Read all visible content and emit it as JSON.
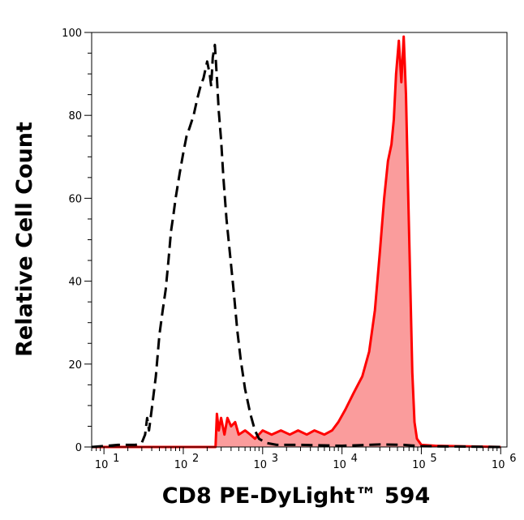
{
  "chart_data": {
    "type": "area",
    "title": "",
    "xlabel": "CD8 PE-DyLight™ 594",
    "ylabel": "Relative Cell Count",
    "x_scale": "log",
    "xlim": [
      7,
      1200000
    ],
    "ylim": [
      0,
      100
    ],
    "x_ticks": [
      {
        "value": 10,
        "base": "10",
        "exp": "1"
      },
      {
        "value": 100,
        "base": "10",
        "exp": "2"
      },
      {
        "value": 1000,
        "base": "10",
        "exp": "3"
      },
      {
        "value": 10000,
        "base": "10",
        "exp": "4"
      },
      {
        "value": 100000,
        "base": "10",
        "exp": "5"
      },
      {
        "value": 1000000,
        "base": "10",
        "exp": "6"
      }
    ],
    "y_ticks": [
      0,
      20,
      40,
      60,
      80,
      100
    ],
    "grid": false,
    "legend": "none",
    "series": [
      {
        "style": "dashed",
        "color": "#000000",
        "fill": "none",
        "points": [
          [
            7,
            0
          ],
          [
            15,
            0.5
          ],
          [
            25,
            0.5
          ],
          [
            30,
            1
          ],
          [
            33,
            3
          ],
          [
            35,
            7
          ],
          [
            37,
            4
          ],
          [
            40,
            9
          ],
          [
            45,
            17
          ],
          [
            50,
            27
          ],
          [
            55,
            33
          ],
          [
            60,
            38
          ],
          [
            65,
            45
          ],
          [
            70,
            52
          ],
          [
            75,
            56
          ],
          [
            80,
            60
          ],
          [
            90,
            66
          ],
          [
            100,
            71
          ],
          [
            110,
            75
          ],
          [
            120,
            77
          ],
          [
            135,
            80
          ],
          [
            150,
            84
          ],
          [
            165,
            87
          ],
          [
            180,
            89
          ],
          [
            200,
            93
          ],
          [
            215,
            90
          ],
          [
            225,
            87
          ],
          [
            235,
            94
          ],
          [
            250,
            97
          ],
          [
            265,
            89
          ],
          [
            280,
            81
          ],
          [
            300,
            74
          ],
          [
            320,
            65
          ],
          [
            350,
            55
          ],
          [
            390,
            46
          ],
          [
            430,
            38
          ],
          [
            480,
            28
          ],
          [
            530,
            21
          ],
          [
            600,
            14
          ],
          [
            700,
            8
          ],
          [
            800,
            4
          ],
          [
            900,
            2
          ],
          [
            1100,
            1
          ],
          [
            1500,
            0.5
          ],
          [
            3000,
            0.5
          ],
          [
            10000,
            0.3
          ],
          [
            30000,
            0.6
          ],
          [
            60000,
            0.5
          ],
          [
            100000,
            0.2
          ],
          [
            1000000,
            0
          ]
        ]
      },
      {
        "style": "solid",
        "color": "#ff0000",
        "fill": "#fa9c9c",
        "points": [
          [
            7,
            0
          ],
          [
            200,
            0
          ],
          [
            255,
            0
          ],
          [
            265,
            8
          ],
          [
            280,
            4
          ],
          [
            300,
            7
          ],
          [
            330,
            3
          ],
          [
            360,
            7
          ],
          [
            400,
            5
          ],
          [
            450,
            6
          ],
          [
            500,
            3
          ],
          [
            600,
            4
          ],
          [
            700,
            3
          ],
          [
            800,
            2
          ],
          [
            1000,
            4
          ],
          [
            1300,
            3
          ],
          [
            1700,
            4
          ],
          [
            2200,
            3
          ],
          [
            2800,
            4
          ],
          [
            3600,
            3
          ],
          [
            4500,
            4
          ],
          [
            6000,
            3
          ],
          [
            7500,
            4
          ],
          [
            9000,
            6
          ],
          [
            11000,
            9
          ],
          [
            14000,
            13
          ],
          [
            18000,
            17
          ],
          [
            22000,
            23
          ],
          [
            26000,
            33
          ],
          [
            30000,
            47
          ],
          [
            34000,
            60
          ],
          [
            38000,
            69
          ],
          [
            42000,
            73
          ],
          [
            45000,
            79
          ],
          [
            48000,
            90
          ],
          [
            52000,
            98
          ],
          [
            56000,
            88
          ],
          [
            60000,
            99
          ],
          [
            64000,
            85
          ],
          [
            68000,
            62
          ],
          [
            72000,
            42
          ],
          [
            77000,
            18
          ],
          [
            82000,
            6
          ],
          [
            88000,
            2
          ],
          [
            100000,
            0.5
          ],
          [
            150000,
            0.3
          ],
          [
            1000000,
            0
          ]
        ]
      }
    ]
  }
}
